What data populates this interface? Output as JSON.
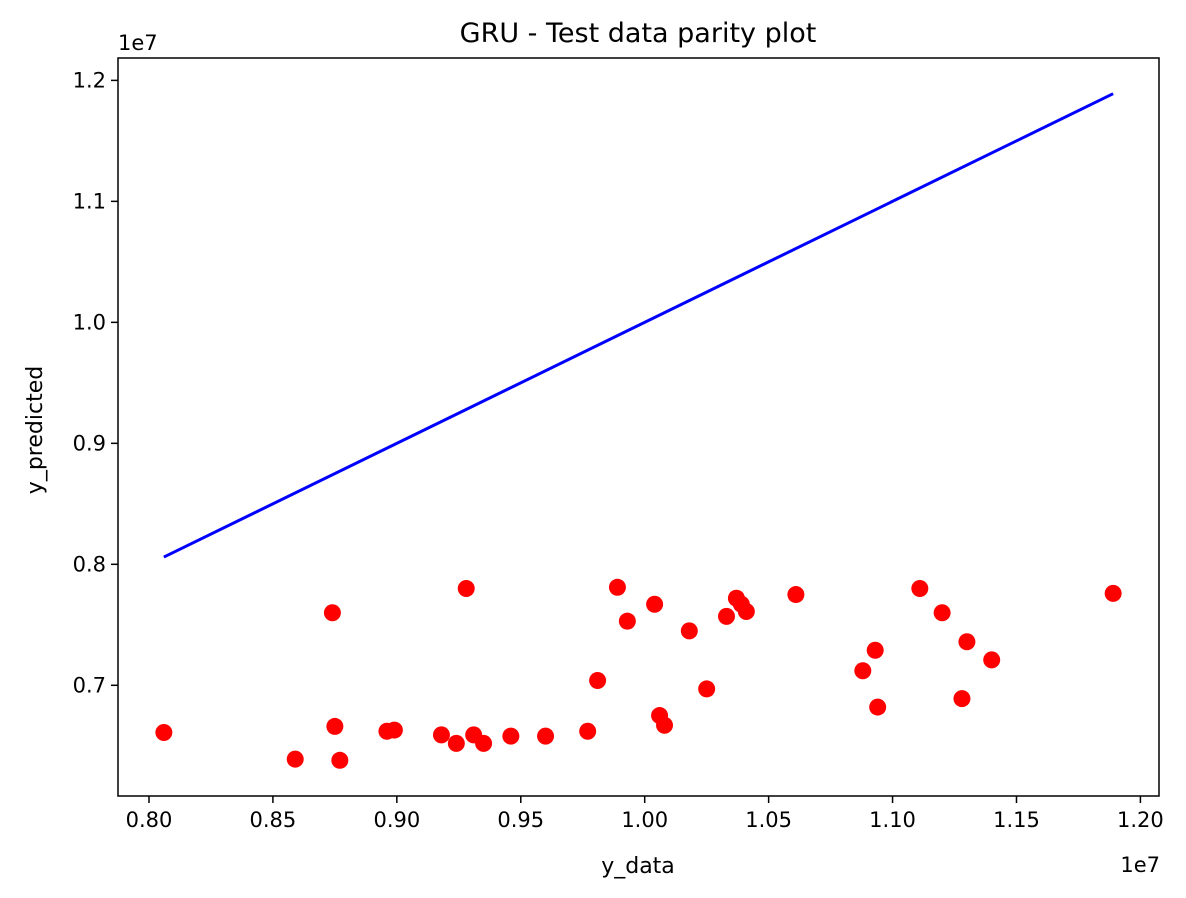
{
  "chart_data": {
    "type": "scatter",
    "title": "GRU - Test data parity plot",
    "xlabel": "y_data",
    "ylabel": "y_predicted",
    "x_offset_label": "1e7",
    "y_offset_label": "1e7",
    "xlim": [
      0.7875,
      1.2075
    ],
    "ylim": [
      0.6085,
      1.2185
    ],
    "xticks": [
      0.8,
      0.85,
      0.9,
      0.95,
      1.0,
      1.05,
      1.1,
      1.15,
      1.2
    ],
    "xtick_labels": [
      "0.80",
      "0.85",
      "0.90",
      "0.95",
      "1.00",
      "1.05",
      "1.10",
      "1.15",
      "1.20"
    ],
    "yticks": [
      0.7,
      0.8,
      0.9,
      1.0,
      1.1,
      1.2
    ],
    "ytick_labels": [
      "0.7",
      "0.8",
      "0.9",
      "1.0",
      "1.1",
      "1.2"
    ],
    "grid": false,
    "series": [
      {
        "kind": "line",
        "color": "#0000ff",
        "x": [
          0.806,
          1.189
        ],
        "y": [
          0.806,
          1.189
        ]
      },
      {
        "kind": "scatter",
        "color": "#ff0000",
        "x": [
          0.806,
          0.859,
          0.874,
          0.875,
          0.877,
          0.896,
          0.899,
          0.918,
          0.924,
          0.928,
          0.931,
          0.935,
          0.946,
          0.96,
          0.977,
          0.981,
          0.989,
          0.993,
          1.004,
          1.006,
          1.008,
          1.018,
          1.025,
          1.033,
          1.037,
          1.039,
          1.041,
          1.061,
          1.088,
          1.093,
          1.094,
          1.111,
          1.12,
          1.128,
          1.13,
          1.14,
          1.189
        ],
        "y": [
          0.661,
          0.639,
          0.76,
          0.666,
          0.638,
          0.662,
          0.663,
          0.659,
          0.652,
          0.78,
          0.659,
          0.652,
          0.658,
          0.658,
          0.662,
          0.704,
          0.781,
          0.753,
          0.767,
          0.675,
          0.667,
          0.745,
          0.697,
          0.757,
          0.772,
          0.767,
          0.761,
          0.775,
          0.712,
          0.729,
          0.682,
          0.78,
          0.76,
          0.689,
          0.736,
          0.721,
          0.776
        ]
      }
    ]
  }
}
